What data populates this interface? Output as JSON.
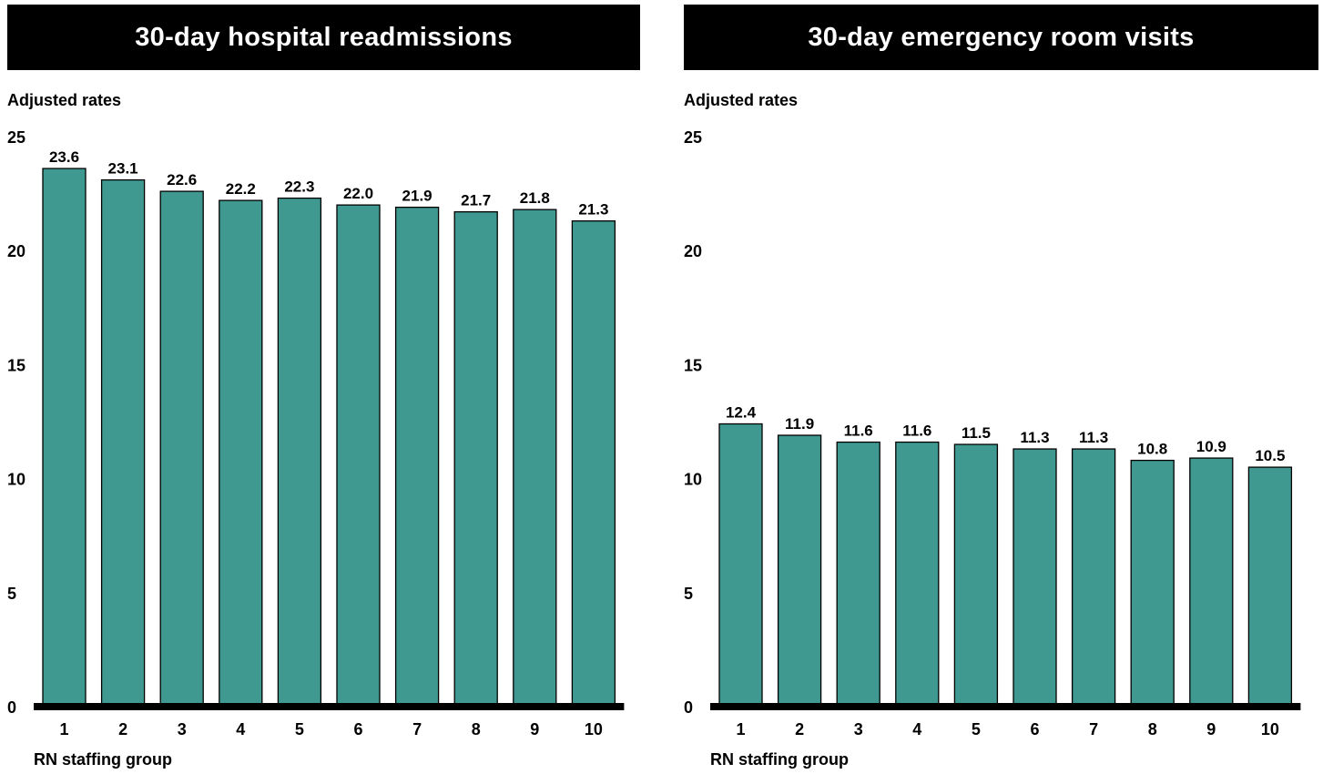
{
  "chart_data": [
    {
      "type": "bar",
      "title": "30-day hospital readmissions",
      "ylabel": "Adjusted rates",
      "xlabel": "RN staffing group",
      "categories": [
        "1",
        "2",
        "3",
        "4",
        "5",
        "6",
        "7",
        "8",
        "9",
        "10"
      ],
      "values": [
        23.6,
        23.1,
        22.6,
        22.2,
        22.3,
        22.0,
        21.9,
        21.7,
        21.8,
        21.3
      ],
      "value_labels": [
        "23.6",
        "23.1",
        "22.6",
        "22.2",
        "22.3",
        "22.0",
        "21.9",
        "21.7",
        "21.8",
        "21.3"
      ],
      "ylim": [
        0,
        25
      ],
      "yticks": [
        "0",
        "5",
        "10",
        "15",
        "20",
        "25"
      ],
      "grid": false,
      "legend": "none",
      "bar_color": "#409990"
    },
    {
      "type": "bar",
      "title": "30-day emergency room visits",
      "ylabel": "Adjusted rates",
      "xlabel": "RN staffing group",
      "categories": [
        "1",
        "2",
        "3",
        "4",
        "5",
        "6",
        "7",
        "8",
        "9",
        "10"
      ],
      "values": [
        12.4,
        11.9,
        11.6,
        11.6,
        11.5,
        11.3,
        11.3,
        10.8,
        10.9,
        10.5
      ],
      "value_labels": [
        "12.4",
        "11.9",
        "11.6",
        "11.6",
        "11.5",
        "11.3",
        "11.3",
        "10.8",
        "10.9",
        "10.5"
      ],
      "ylim": [
        0,
        25
      ],
      "yticks": [
        "0",
        "5",
        "10",
        "15",
        "20",
        "25"
      ],
      "grid": false,
      "legend": "none",
      "bar_color": "#409990"
    }
  ]
}
